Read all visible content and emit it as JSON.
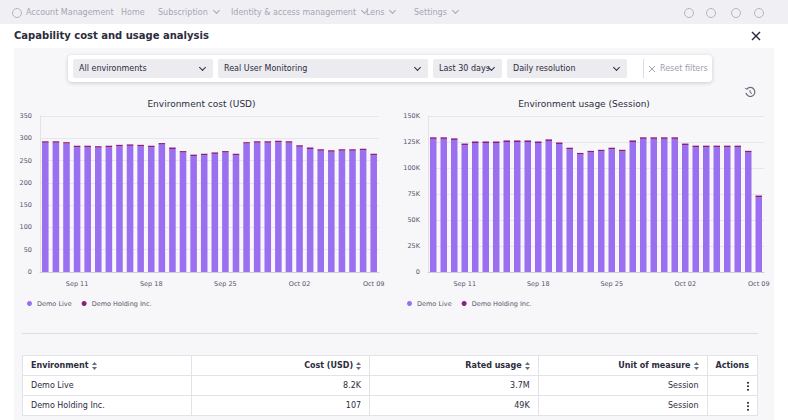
{
  "nav": [
    "Account Management",
    "Home",
    "Subscription",
    "Identity & access management",
    "Lens",
    "Settings"
  ],
  "title": "Capability cost and usage analysis",
  "filters": [
    "All environments",
    "Real User Monitoring",
    "Last 30 days",
    "Daily resolution"
  ],
  "reset_filters": "Reset filters",
  "chart_data": [
    {
      "type": "bar",
      "title": "Environment cost (USD)",
      "stacked": true,
      "grid": true,
      "legend": "bottom-left",
      "categories": [
        null,
        null,
        null,
        "Sep 11",
        null,
        null,
        null,
        null,
        null,
        null,
        "Sep 18",
        null,
        null,
        null,
        null,
        null,
        null,
        "Sep 25",
        null,
        null,
        null,
        null,
        null,
        null,
        "Oct 02",
        null,
        null,
        null,
        null,
        null,
        null,
        "Oct 09"
      ],
      "series": [
        {
          "name": "Demo Live",
          "color": "#9b70f0",
          "values": [
            290,
            290,
            288,
            280,
            280,
            279,
            280,
            282,
            283,
            282,
            280,
            286,
            276,
            268,
            260,
            262,
            265,
            268,
            262,
            288,
            290,
            290,
            291,
            290,
            281,
            276,
            272,
            270,
            272,
            272,
            273,
            262
          ]
        },
        {
          "name": "Demo Holding Inc.",
          "color": "#8e1f7d",
          "values": [
            3.3,
            3.3,
            3.3,
            3.3,
            3.3,
            3.3,
            3.3,
            3.3,
            3.3,
            3.3,
            3.3,
            3.3,
            3.3,
            3.3,
            3.3,
            3.3,
            3.3,
            3.3,
            3.3,
            3.3,
            3.3,
            3.3,
            3.3,
            3.3,
            3.3,
            3.3,
            3.3,
            3.3,
            3.3,
            3.3,
            3.3,
            3.3
          ]
        }
      ],
      "ylim": [
        0,
        350
      ],
      "yticks": [
        0,
        50,
        100,
        150,
        200,
        250,
        300,
        350
      ]
    },
    {
      "type": "bar",
      "title": "Environment usage (Session)",
      "stacked": true,
      "grid": true,
      "legend": "bottom-left",
      "categories": [
        null,
        null,
        null,
        "Sep 11",
        null,
        null,
        null,
        null,
        null,
        null,
        "Sep 18",
        null,
        null,
        null,
        null,
        null,
        null,
        "Sep 25",
        null,
        null,
        null,
        null,
        null,
        null,
        "Oct 02",
        null,
        null,
        null,
        null,
        null,
        null,
        "Oct 09"
      ],
      "series": [
        {
          "name": "Demo Live",
          "color": "#9b70f0",
          "values": [
            128000,
            128000,
            127000,
            122000,
            124000,
            124000,
            124000,
            125000,
            125000,
            125000,
            124000,
            126000,
            123000,
            118000,
            113000,
            115000,
            116000,
            118000,
            116000,
            125000,
            128000,
            128000,
            128000,
            128000,
            122000,
            120000,
            120000,
            120000,
            120000,
            120000,
            115000,
            72000
          ]
        },
        {
          "name": "Demo Holding Inc.",
          "color": "#8e1f7d",
          "values": [
            1500,
            1500,
            1500,
            1500,
            1500,
            1500,
            1500,
            1500,
            1500,
            1500,
            1500,
            1500,
            1500,
            1500,
            1500,
            1500,
            1500,
            1500,
            1500,
            1500,
            1500,
            1500,
            1500,
            1500,
            1500,
            1500,
            1500,
            1500,
            1500,
            1500,
            1500,
            1500
          ]
        }
      ],
      "ylim": [
        0,
        150000
      ],
      "yticks": [
        0,
        {
          "value": 25000,
          "label": "25K"
        },
        {
          "value": 50000,
          "label": "50K"
        },
        {
          "value": 75000,
          "label": "75K"
        },
        {
          "value": 100000,
          "label": "100K"
        },
        {
          "value": 125000,
          "label": "125K"
        },
        {
          "value": 150000,
          "label": "150K"
        }
      ]
    }
  ],
  "table": {
    "columns": [
      "Environment",
      "Cost (USD)",
      "Rated usage",
      "Unit of measure",
      "Actions"
    ],
    "rows": [
      [
        "Demo Live",
        "8.2K",
        "3.7M",
        "Session"
      ],
      [
        "Demo Holding Inc.",
        "107",
        "49K",
        "Session"
      ]
    ]
  }
}
